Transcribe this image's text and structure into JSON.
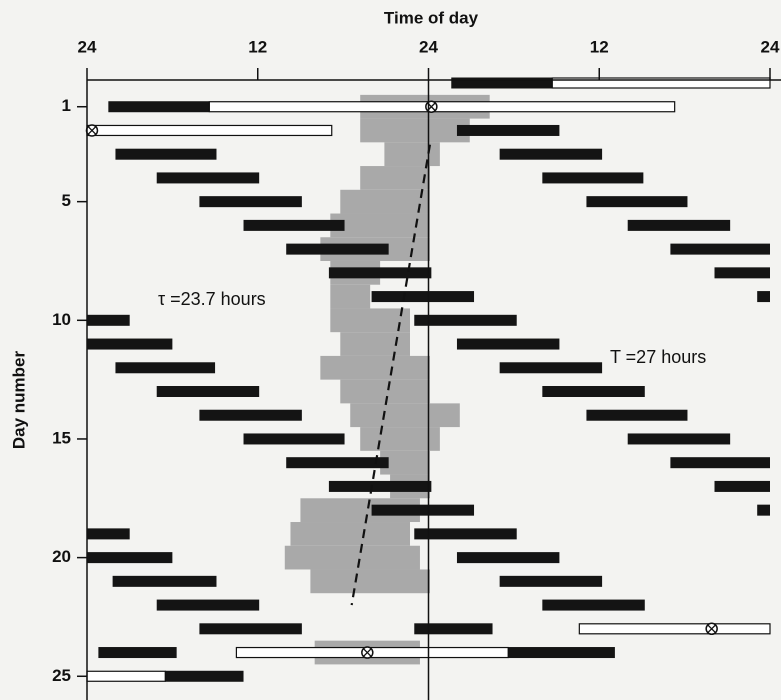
{
  "chart_data": {
    "type": "raster",
    "xlabel": "Time of day",
    "ylabel": "Day number",
    "xlim": [
      0,
      48
    ],
    "xticks": [
      {
        "value": 0,
        "label": "24"
      },
      12,
      24,
      {
        "value": 36,
        "label": "12"
      },
      {
        "value": 48,
        "label": "24"
      }
    ],
    "ylim": [
      0,
      26
    ],
    "yticks": [
      1,
      5,
      10,
      15,
      20,
      25
    ],
    "annotations": [
      "τ =23.7  hours",
      "T =27  hours"
    ],
    "sleep": {
      "color": "#141414",
      "episodes": [
        [
          0,
          25.6,
          32.7
        ],
        [
          1,
          1.5,
          8.6
        ],
        [
          2,
          26.0,
          33.2
        ],
        [
          3,
          2.0,
          9.1
        ],
        [
          3,
          29.0,
          36.2
        ],
        [
          4,
          4.9,
          12.1
        ],
        [
          4,
          32.0,
          39.1
        ],
        [
          5,
          7.9,
          15.1
        ],
        [
          5,
          35.1,
          42.2
        ],
        [
          6,
          11.0,
          18.1
        ],
        [
          6,
          38.0,
          45.2
        ],
        [
          7,
          14.0,
          21.2
        ],
        [
          7,
          41.0,
          48
        ],
        [
          8,
          17.0,
          24.2
        ],
        [
          8,
          44.1,
          48
        ],
        [
          9,
          20.0,
          27.2
        ],
        [
          9,
          47.1,
          48
        ],
        [
          10,
          0,
          3.0
        ],
        [
          10,
          23.0,
          30.2
        ],
        [
          11,
          0,
          6.0
        ],
        [
          11,
          26.0,
          33.2
        ],
        [
          12,
          2.0,
          9.0
        ],
        [
          12,
          29.0,
          36.2
        ],
        [
          13,
          4.9,
          12.1
        ],
        [
          13,
          32.0,
          39.2
        ],
        [
          14,
          7.9,
          15.1
        ],
        [
          14,
          35.1,
          42.2
        ],
        [
          15,
          11.0,
          18.1
        ],
        [
          15,
          38.0,
          45.2
        ],
        [
          16,
          14.0,
          21.2
        ],
        [
          16,
          41.0,
          48
        ],
        [
          17,
          17.0,
          24.2
        ],
        [
          17,
          44.1,
          48
        ],
        [
          18,
          20.0,
          27.2
        ],
        [
          18,
          47.1,
          48
        ],
        [
          19,
          0,
          3.0
        ],
        [
          19,
          23.0,
          30.2
        ],
        [
          20,
          0,
          6.0
        ],
        [
          20,
          26.0,
          33.2
        ],
        [
          21,
          1.8,
          9.1
        ],
        [
          21,
          29.0,
          36.2
        ],
        [
          22,
          4.9,
          12.1
        ],
        [
          22,
          32.0,
          39.2
        ],
        [
          23,
          7.9,
          15.1
        ],
        [
          23,
          23.0,
          28.5
        ],
        [
          24,
          0.8,
          6.3
        ],
        [
          24,
          29.6,
          37.1
        ],
        [
          25,
          5.5,
          11.0
        ]
      ]
    },
    "shading": {
      "color": "#a9a9a9",
      "episodes": [
        [
          1,
          19.2,
          28.3
        ],
        [
          2,
          19.2,
          26.9
        ],
        [
          3,
          20.9,
          24.8
        ],
        [
          4,
          19.2,
          24.1
        ],
        [
          5,
          17.8,
          24.1
        ],
        [
          6,
          17.1,
          24.1
        ],
        [
          7,
          16.4,
          24.1
        ],
        [
          8,
          17.1,
          20.6
        ],
        [
          9,
          17.1,
          19.9
        ],
        [
          10,
          17.1,
          22.7
        ],
        [
          11,
          17.8,
          22.7
        ],
        [
          12,
          16.4,
          24.1
        ],
        [
          13,
          17.8,
          24.1
        ],
        [
          14,
          18.5,
          26.2
        ],
        [
          15,
          19.2,
          24.8
        ],
        [
          16,
          20.6,
          24.1
        ],
        [
          17,
          21.3,
          24.1
        ],
        [
          18,
          15.0,
          23.4
        ],
        [
          19,
          14.3,
          22.7
        ],
        [
          20,
          13.9,
          23.4
        ],
        [
          21,
          15.7,
          24.1
        ],
        [
          24,
          16.0,
          23.4
        ]
      ]
    },
    "light": {
      "color": "#ffffff",
      "episodes": [
        {
          "day": 0,
          "start": 32.7,
          "end": 48
        },
        {
          "day": 1,
          "start": 8.6,
          "end": 41.3,
          "marker": 24.2
        },
        {
          "day": 2,
          "start": 0,
          "end": 17.2,
          "marker": 0.35
        },
        {
          "day": 23,
          "start": 34.6,
          "end": 48,
          "marker": 43.9
        },
        {
          "day": 24,
          "start": 10.5,
          "end": 29.6,
          "marker": 19.7
        },
        {
          "day": 25,
          "start": 0,
          "end": 5.5
        }
      ]
    },
    "trend_line": {
      "x": [
        24.1,
        18.6
      ],
      "y": [
        2.6,
        22.0
      ]
    }
  }
}
